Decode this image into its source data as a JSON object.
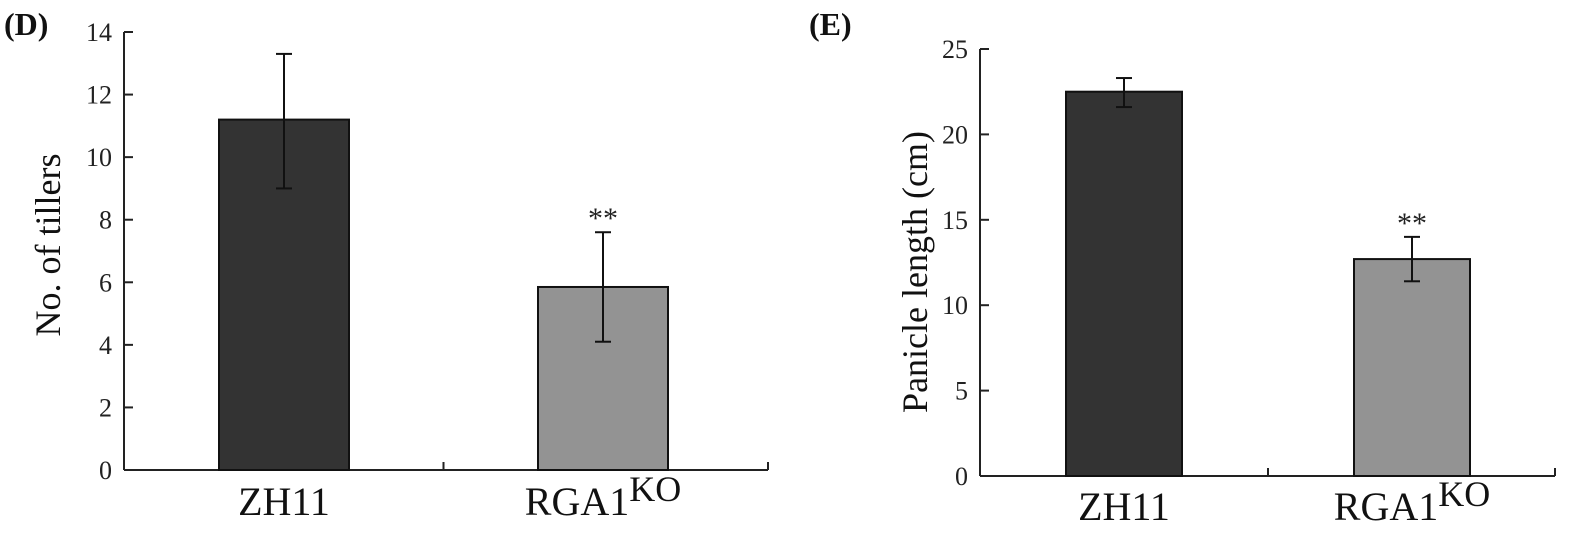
{
  "chart_data": [
    {
      "panel": "(D)",
      "type": "bar",
      "title": "",
      "xlabel": "",
      "ylabel": "No. of tillers",
      "ylim": [
        0,
        14
      ],
      "yticks": [
        0,
        2,
        4,
        6,
        8,
        10,
        12,
        14
      ],
      "categories": [
        {
          "main": "ZH11",
          "sup": ""
        },
        {
          "main": "RGA1",
          "sup": "KO"
        }
      ],
      "values": [
        11.2,
        5.85
      ],
      "errors": [
        [
          9.0,
          13.3
        ],
        [
          4.1,
          7.6
        ]
      ],
      "significance": [
        "",
        "**"
      ],
      "colors": [
        "#333333",
        "#939393"
      ]
    },
    {
      "panel": "(E)",
      "type": "bar",
      "title": "",
      "xlabel": "",
      "ylabel": "Panicle length (cm)",
      "ylim": [
        0,
        25
      ],
      "yticks": [
        0,
        5,
        10,
        15,
        20,
        25
      ],
      "categories": [
        {
          "main": "ZH11",
          "sup": ""
        },
        {
          "main": "RGA1",
          "sup": "KO"
        }
      ],
      "values": [
        22.5,
        12.7
      ],
      "errors": [
        [
          21.6,
          23.3
        ],
        [
          11.4,
          14.0
        ]
      ],
      "significance": [
        "",
        "**"
      ],
      "colors": [
        "#333333",
        "#939393"
      ]
    }
  ]
}
